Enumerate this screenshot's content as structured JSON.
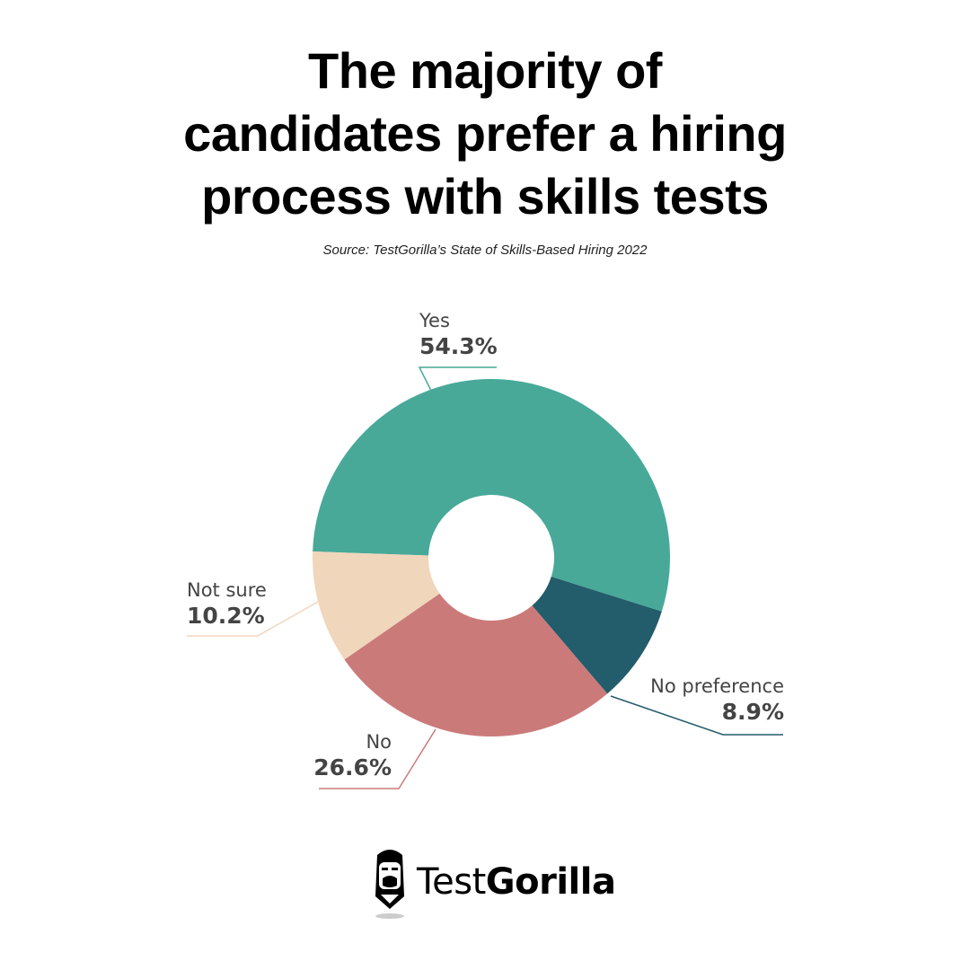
{
  "title_lines": [
    "The majority of",
    "candidates prefer a hiring",
    "process with skills tests"
  ],
  "source": "Source: TestGorilla’s State of Skills-Based Hiring 2022",
  "brand": {
    "light": "Test",
    "bold": "Gorilla"
  },
  "chart_data": {
    "type": "pie",
    "donut": true,
    "title": "The majority of candidates prefer a hiring process with skills tests",
    "slices": [
      {
        "label": "Yes",
        "value": 54.3,
        "display": "54.3%",
        "color": "#48a999"
      },
      {
        "label": "No preference",
        "value": 8.9,
        "display": "8.9%",
        "color": "#235c6b"
      },
      {
        "label": "No",
        "value": 26.6,
        "display": "26.6%",
        "color": "#cb7a7a"
      },
      {
        "label": "Not sure",
        "value": 10.2,
        "display": "10.2%",
        "color": "#f0d6bb"
      }
    ]
  }
}
